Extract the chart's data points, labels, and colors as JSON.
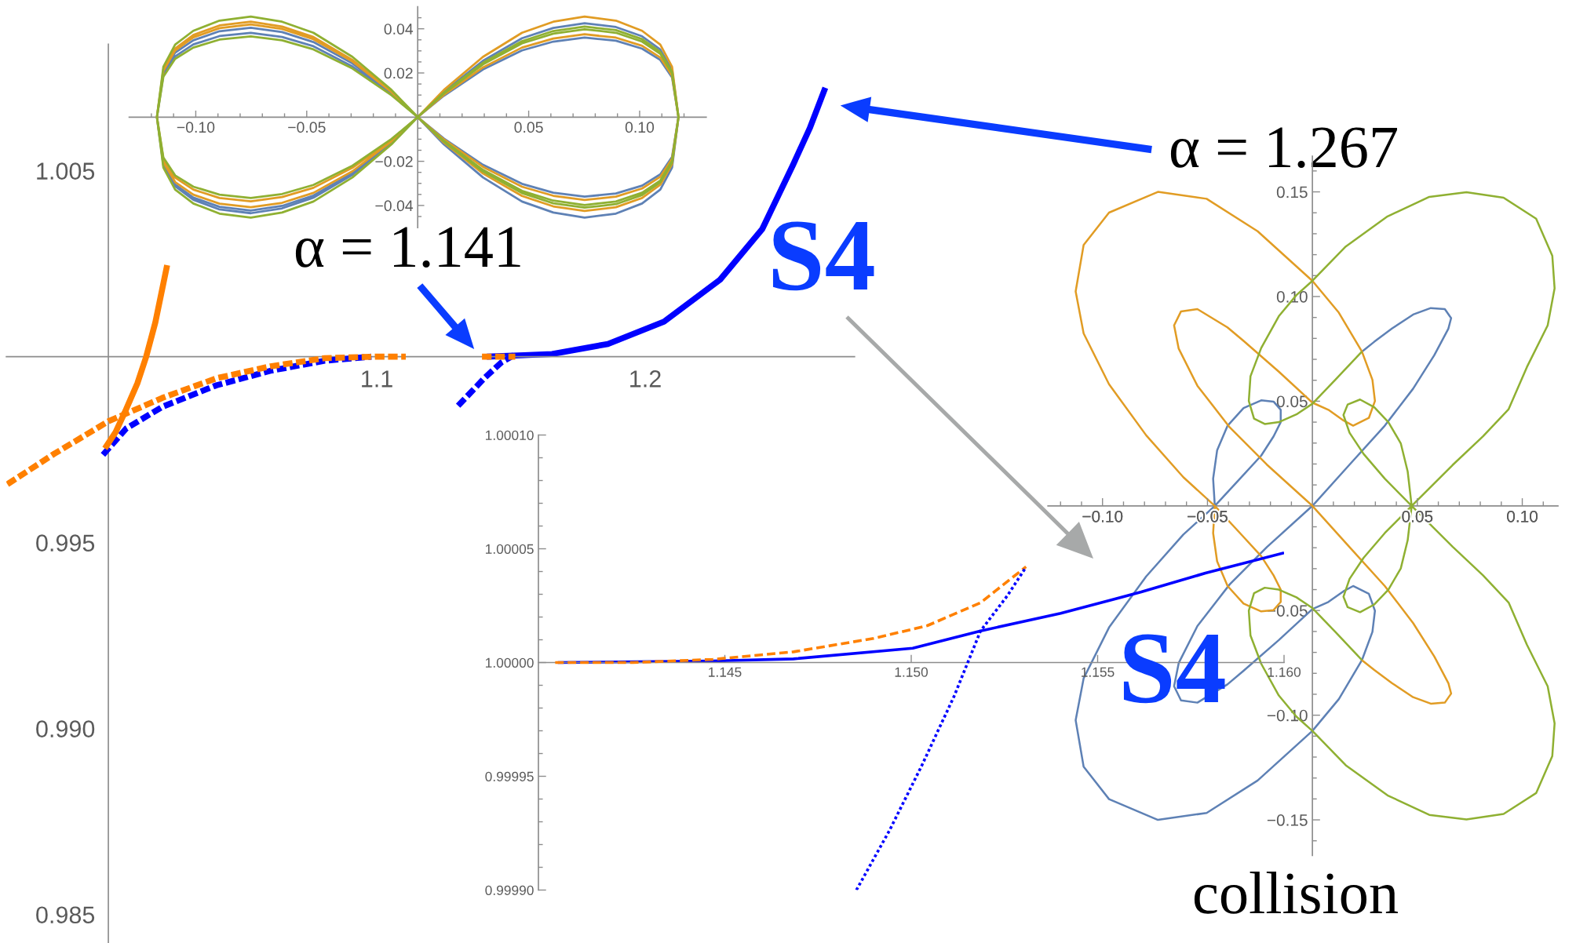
{
  "chart_data": [
    {
      "type": "line",
      "xlim": [
        0.962,
        1.278
      ],
      "ylim": [
        0.98425,
        1.0084
      ],
      "xticks": [
        {
          "value": 1.0,
          "label": null
        },
        1.1,
        1.2
      ],
      "yticks": [
        0.985,
        {
          "value": 0.99,
          "label": "0.990"
        },
        0.995,
        {
          "value": 1.0,
          "label": null
        },
        1.005
      ],
      "series": [
        {
          "color": "#0000ff",
          "line_style": "solid",
          "x": [
            1.141,
            1.1548,
            1.1653,
            1.1861,
            1.207,
            1.2279,
            1.2436,
            1.2551,
            1.2613,
            1.2671
          ],
          "values": [
            1.0,
            1.00004,
            1.00007,
            1.00034,
            1.00094,
            1.00207,
            1.00343,
            1.00516,
            1.00614,
            1.00723
          ]
        },
        {
          "color": "#0000ff",
          "line_style": "dashed",
          "x": [
            0.998,
            1.0067,
            1.0201,
            1.0403,
            1.0604,
            1.0806,
            1.098
          ],
          "values": [
            0.99736,
            0.99807,
            0.99865,
            0.99923,
            0.99962,
            0.99989,
            1.0
          ]
        },
        {
          "color": "#0000ff",
          "line_style": "dashed",
          "x": [
            1.1303,
            1.1402,
            1.1465,
            1.1511
          ],
          "values": [
            0.99868,
            0.99943,
            0.99985,
            1.00004
          ]
        },
        {
          "color": "#ff8000",
          "line_style": "dashed",
          "x": [
            1.1392,
            1.1453,
            1.1516
          ],
          "values": [
            1.0,
            1.0,
            1.0
          ]
        },
        {
          "color": "#ff8000",
          "line_style": "solid",
          "x": [
            0.9987,
            1.0027,
            1.0061,
            1.0108,
            1.0141,
            1.0175,
            1.0219
          ],
          "values": [
            0.99753,
            0.99797,
            0.9985,
            0.99928,
            1.0,
            1.00092,
            1.00246
          ]
        },
        {
          "color": "#ff8000",
          "line_style": "dashed",
          "x": [
            0.9624,
            0.9799,
            1.0,
            1.0201,
            1.0403,
            1.0604,
            1.0806,
            1.0994,
            1.1108
          ],
          "values": [
            0.99657,
            0.99739,
            0.99826,
            0.99889,
            0.99942,
            0.99974,
            0.99996,
            1.0,
            1.0
          ]
        }
      ],
      "annotations": [
        "α = 1.141",
        "α = 1.267",
        "S4"
      ]
    },
    {
      "type": "line",
      "xlim": [
        -0.13,
        0.13
      ],
      "ylim": [
        -0.05,
        0.05
      ],
      "xticks": [
        {
          "value": -0.12,
          "label": null
        },
        {
          "value": -0.11,
          "label": null
        },
        {
          "value": -0.1,
          "label": "−0.10"
        },
        {
          "value": -0.09,
          "label": null
        },
        {
          "value": -0.08,
          "label": null
        },
        {
          "value": -0.07,
          "label": null
        },
        {
          "value": -0.06,
          "label": null
        },
        {
          "value": -0.05,
          "label": "−0.05"
        },
        {
          "value": -0.04,
          "label": null
        },
        {
          "value": -0.03,
          "label": null
        },
        {
          "value": -0.02,
          "label": null
        },
        {
          "value": -0.01,
          "label": null
        },
        {
          "value": 0.01,
          "label": null
        },
        {
          "value": 0.02,
          "label": null
        },
        {
          "value": 0.03,
          "label": null
        },
        {
          "value": 0.04,
          "label": null
        },
        0.05,
        {
          "value": 0.06,
          "label": null
        },
        {
          "value": 0.07,
          "label": null
        },
        {
          "value": 0.08,
          "label": null
        },
        {
          "value": 0.09,
          "label": null
        },
        {
          "value": 0.1,
          "label": "0.10"
        },
        {
          "value": 0.11,
          "label": null
        },
        {
          "value": 0.12,
          "label": null
        }
      ],
      "yticks": [
        {
          "value": -0.045,
          "label": null
        },
        {
          "value": -0.04,
          "label": "−0.04"
        },
        {
          "value": -0.035,
          "label": null
        },
        {
          "value": -0.03,
          "label": null
        },
        {
          "value": -0.025,
          "label": null
        },
        {
          "value": -0.02,
          "label": "−0.02"
        },
        {
          "value": -0.015,
          "label": null
        },
        {
          "value": -0.01,
          "label": null
        },
        {
          "value": -0.005,
          "label": null
        },
        {
          "value": 0.005,
          "label": null
        },
        {
          "value": 0.01,
          "label": null
        },
        {
          "value": 0.015,
          "label": null
        },
        0.02,
        {
          "value": 0.025,
          "label": null
        },
        {
          "value": 0.03,
          "label": null
        },
        {
          "value": 0.035,
          "label": null
        },
        0.04,
        {
          "value": 0.045,
          "label": null
        }
      ],
      "x": [
        0,
        0.0118,
        0.0294,
        0.047,
        0.0611,
        0.0752,
        0.0893,
        0.1011,
        0.1093,
        0.1146,
        0.1175,
        0.1146,
        0.1093,
        0.1011,
        0.0893,
        0.0752,
        0.0611,
        0.047,
        0.0294,
        0.0118,
        0,
        -0.0118,
        -0.0294,
        -0.047,
        -0.0611,
        -0.0752,
        -0.0893,
        -0.1011,
        -0.1093,
        -0.1146,
        -0.1175,
        -0.1146,
        -0.1093,
        -0.1011,
        -0.0893,
        -0.0752,
        -0.0611,
        -0.047,
        -0.0294,
        -0.0118,
        0,
        0.0118,
        0.0294,
        0.047,
        0.0611,
        0.0752,
        0.0893,
        0.1011,
        0.1093,
        0.1146,
        0.1175,
        0.1146,
        0.1093,
        0.1011,
        0.0893,
        0.0752,
        0.0611,
        0.047,
        0.0294,
        0.0118,
        0,
        -0.0118,
        -0.0294,
        -0.047,
        -0.0611,
        -0.0752,
        -0.0893,
        -0.1011,
        -0.1093,
        -0.1146,
        -0.1175,
        -0.1146,
        -0.1093,
        -0.1011,
        -0.0893,
        -0.0752,
        -0.0611,
        -0.047,
        -0.0294,
        -0.0118,
        0,
        0.0118
      ],
      "series": [
        {
          "color": "#5e81b5",
          "line_style": "solid",
          "values": [
            0,
            0.0115,
            0.0255,
            0.0357,
            0.0404,
            0.0425,
            0.0408,
            0.0366,
            0.0306,
            0.0213,
            0,
            -0.0228,
            -0.0328,
            -0.0391,
            -0.0437,
            -0.0455,
            -0.0432,
            -0.0382,
            -0.0273,
            -0.0123,
            0,
            0.0109,
            0.0243,
            0.034,
            0.0385,
            0.0405,
            0.0389,
            0.0348,
            0.0292,
            0.0203,
            0,
            -0.0218,
            -0.0313,
            -0.0374,
            -0.0418,
            -0.0435,
            -0.0413,
            -0.0365,
            -0.0261,
            -0.0117,
            0,
            0.0097,
            0.0216,
            0.0302,
            0.0342,
            0.036,
            0.0346,
            0.031,
            0.0259,
            0.018,
            0,
            -0.018,
            -0.0259,
            -0.031,
            -0.0346,
            -0.036,
            -0.0342,
            -0.0302,
            -0.0216,
            -0.0097,
            0,
            0.0103,
            0.0229,
            0.0321,
            0.0363,
            0.0382,
            0.0367,
            0.0329,
            0.0275,
            0.0191,
            0,
            -0.0212,
            -0.0305,
            -0.0364,
            -0.0406,
            -0.0423,
            -0.0402,
            -0.0355,
            -0.0254,
            -0.0114,
            0,
            0.0115
          ]
        },
        {
          "color": "#e19c24",
          "line_style": "solid",
          "values": [
            0,
            0.0123,
            0.0273,
            0.0382,
            0.0432,
            0.0455,
            0.0437,
            0.0391,
            0.0328,
            0.0228,
            0,
            -0.0213,
            -0.0306,
            -0.0366,
            -0.0408,
            -0.0425,
            -0.0404,
            -0.0357,
            -0.0255,
            -0.0115,
            0,
            0.0117,
            0.0259,
            0.0363,
            0.041,
            0.0432,
            0.0415,
            0.0372,
            0.0311,
            0.0216,
            0,
            -0.0204,
            -0.0294,
            -0.0351,
            -0.0392,
            -0.0408,
            -0.0388,
            -0.0343,
            -0.0245,
            -0.011,
            0,
            0.0101,
            0.0225,
            0.0315,
            0.0356,
            0.0375,
            0.036,
            0.0323,
            0.027,
            0.0188,
            0,
            -0.0188,
            -0.027,
            -0.0323,
            -0.036,
            -0.0375,
            -0.0356,
            -0.0315,
            -0.0225,
            -0.0101,
            0,
            0.0113,
            0.0252,
            0.0353,
            0.0399,
            0.042,
            0.0403,
            0.0361,
            0.0302,
            0.021,
            0,
            -0.0191,
            -0.0274,
            -0.0328,
            -0.0366,
            -0.0381,
            -0.0362,
            -0.032,
            -0.0229,
            -0.0103,
            0,
            0.0123
          ]
        },
        {
          "color": "#8fb032",
          "line_style": "solid",
          "values": [
            0,
            0.0111,
            0.0246,
            0.0344,
            0.039,
            0.041,
            0.0394,
            0.0353,
            0.0295,
            0.0205,
            0,
            -0.0205,
            -0.0295,
            -0.0353,
            -0.0394,
            -0.041,
            -0.039,
            -0.0344,
            -0.0246,
            -0.0111,
            0,
            0.0123,
            0.0273,
            0.0382,
            0.0432,
            0.0455,
            0.0437,
            0.0391,
            0.0328,
            0.0228,
            0,
            -0.0228,
            -0.0328,
            -0.0391,
            -0.0437,
            -0.0455,
            -0.0432,
            -0.0382,
            -0.0273,
            -0.0123,
            0,
            0.0107,
            0.0239,
            0.0334,
            0.0378,
            0.0398,
            0.0382,
            0.0342,
            0.0287,
            0.0199,
            0,
            -0.0199,
            -0.0287,
            -0.0342,
            -0.0382,
            -0.0398,
            -0.0378,
            -0.0334,
            -0.0239,
            -0.0107,
            0,
            0.0099,
            0.022,
            0.0307,
            0.0348,
            0.0366,
            0.0351,
            0.0315,
            0.0264,
            0.0183,
            0,
            -0.0183,
            -0.0264,
            -0.0315,
            -0.0351,
            -0.0366,
            -0.0348,
            -0.0307,
            -0.022,
            -0.0099,
            0,
            0.0111
          ]
        }
      ]
    },
    {
      "type": "line",
      "xlim": [
        1.14,
        1.16
      ],
      "ylim": [
        0.9999,
        1.0001
      ],
      "xticks": [
        1.145,
        {
          "value": 1.15,
          "label": "1.150"
        },
        1.155,
        {
          "value": 1.16,
          "label": "1.160"
        }
      ],
      "yticks": [
        {
          "value": 0.9999,
          "label": "0.99990"
        },
        {
          "value": 0.99991,
          "label": null
        },
        {
          "value": 0.99992,
          "label": null
        },
        {
          "value": 0.99993,
          "label": null
        },
        {
          "value": 0.99994,
          "label": null
        },
        0.99995,
        {
          "value": 0.99996,
          "label": null
        },
        {
          "value": 0.99997,
          "label": null
        },
        {
          "value": 0.99998,
          "label": null
        },
        {
          "value": 0.99999,
          "label": null
        },
        {
          "value": 1.0,
          "label": "1.00000"
        },
        {
          "value": 1.00001,
          "label": null
        },
        {
          "value": 1.00002,
          "label": null
        },
        {
          "value": 1.00003,
          "label": null
        },
        {
          "value": 1.00004,
          "label": null
        },
        1.00005,
        {
          "value": 1.00006,
          "label": null
        },
        {
          "value": 1.00007,
          "label": null
        },
        {
          "value": 1.00008,
          "label": null
        },
        {
          "value": 1.00009,
          "label": null
        },
        {
          "value": 1.0001,
          "label": "1.00010"
        }
      ],
      "series": [
        {
          "color": "#0000ff",
          "line_style": "solid",
          "x": [
            1.14052,
            1.14468,
            1.14684,
            1.15004,
            1.15186,
            1.15401,
            1.15617,
            1.15789,
            1.16
          ],
          "values": [
            1.0,
            1.0000007,
            1.0000016,
            1.0000063,
            1.0000139,
            1.0000216,
            1.000031,
            1.0000393,
            1.0000482
          ]
        },
        {
          "color": "#ff8000",
          "line_style": "dashed",
          "x": [
            1.14045,
            1.14253,
            1.14468,
            1.14684,
            1.14899,
            1.15043,
            1.15186,
            1.15308
          ],
          "values": [
            1.0,
            1.0,
            1.0000014,
            1.0000047,
            1.0000106,
            1.0000162,
            1.0000263,
            1.0000421
          ]
        },
        {
          "color": "#0000ff",
          "line_style": "dotted",
          "x": [
            1.14853,
            1.14942,
            1.15028,
            1.15115,
            1.15186,
            1.15258,
            1.15308
          ],
          "values": [
            0.9999,
            0.9999263,
            0.9999546,
            0.9999852,
            1.0000139,
            1.0000294,
            1.000042
          ]
        }
      ],
      "annotations": [
        "S4"
      ]
    },
    {
      "type": "line",
      "xlim": [
        -0.126,
        0.117
      ],
      "ylim": [
        -0.167,
        0.167
      ],
      "xticks": [
        {
          "value": -0.12,
          "label": null
        },
        {
          "value": -0.11,
          "label": null
        },
        {
          "value": -0.1,
          "label": "−0.10"
        },
        {
          "value": -0.09,
          "label": null
        },
        {
          "value": -0.08,
          "label": null
        },
        {
          "value": -0.07,
          "label": null
        },
        {
          "value": -0.06,
          "label": null
        },
        {
          "value": -0.05,
          "label": "−0.05"
        },
        {
          "value": -0.04,
          "label": null
        },
        {
          "value": -0.03,
          "label": null
        },
        {
          "value": -0.02,
          "label": null
        },
        {
          "value": -0.01,
          "label": null
        },
        {
          "value": 0.01,
          "label": null
        },
        {
          "value": 0.02,
          "label": null
        },
        {
          "value": 0.03,
          "label": null
        },
        {
          "value": 0.04,
          "label": null
        },
        0.05,
        {
          "value": 0.06,
          "label": null
        },
        {
          "value": 0.07,
          "label": null
        },
        {
          "value": 0.08,
          "label": null
        },
        {
          "value": 0.09,
          "label": null
        },
        {
          "value": 0.1,
          "label": "0.10"
        },
        {
          "value": 0.11,
          "label": null
        }
      ],
      "yticks": [
        {
          "value": -0.16,
          "label": null
        },
        {
          "value": -0.15,
          "label": "−0.15"
        },
        {
          "value": -0.14,
          "label": null
        },
        {
          "value": -0.13,
          "label": null
        },
        {
          "value": -0.12,
          "label": null
        },
        {
          "value": -0.11,
          "label": null
        },
        {
          "value": -0.1,
          "label": "−0.10"
        },
        {
          "value": -0.09,
          "label": null
        },
        {
          "value": -0.08,
          "label": null
        },
        {
          "value": -0.07,
          "label": null
        },
        {
          "value": -0.06,
          "label": null
        },
        {
          "value": -0.05,
          "label": "−0.05"
        },
        {
          "value": -0.04,
          "label": null
        },
        {
          "value": -0.03,
          "label": null
        },
        {
          "value": -0.02,
          "label": null
        },
        {
          "value": -0.01,
          "label": null
        },
        {
          "value": 0.01,
          "label": null
        },
        {
          "value": 0.02,
          "label": null
        },
        {
          "value": 0.03,
          "label": null
        },
        {
          "value": 0.04,
          "label": null
        },
        0.05,
        {
          "value": 0.06,
          "label": null
        },
        {
          "value": 0.07,
          "label": null
        },
        {
          "value": 0.08,
          "label": null
        },
        {
          "value": 0.09,
          "label": null
        },
        {
          "value": 0.1,
          "label": "0.10"
        },
        {
          "value": 0.11,
          "label": null
        },
        {
          "value": 0.12,
          "label": null
        },
        {
          "value": 0.13,
          "label": null
        },
        {
          "value": 0.14,
          "label": null
        },
        0.15,
        {
          "value": 0.16,
          "label": null
        }
      ],
      "series": [
        {
          "color": "#5e81b5",
          "line_style": "solid",
          "x": [
            -0.0465,
            -0.0473,
            -0.0454,
            -0.0404,
            -0.0328,
            -0.0244,
            -0.0185,
            -0.0151,
            -0.0151,
            -0.0185,
            -0.0244,
            -0.0345,
            -0.0465,
            -0.0615,
            -0.0792,
            -0.0969,
            -0.109,
            -0.1128,
            -0.109,
            -0.0969,
            -0.0736,
            -0.0504,
            -0.0261,
            0,
            0.0126,
            0.0236,
            0.0286,
            0.0298,
            0.0269,
            0.0194,
            0.0148,
            0.0076,
            0,
            -0.016,
            -0.0328,
            -0.0405,
            -0.0548,
            -0.0626,
            -0.0659,
            -0.0637,
            -0.0548,
            -0.0394,
            -0.0217,
            0,
            0.0177,
            0.0345,
            0.048,
            0.0581,
            0.0648,
            0.0661,
            0.0631,
            0.0564,
            0.048,
            0.0379,
            0.0295,
            0.0236
          ],
          "values": [
            0,
            0.013,
            0.0265,
            0.0383,
            0.0467,
            0.0504,
            0.0498,
            0.0459,
            0.04,
            0.0332,
            0.024,
            0.013,
            0,
            -0.0137,
            -0.0337,
            -0.0581,
            -0.0824,
            -0.1024,
            -0.1246,
            -0.1401,
            -0.15,
            -0.1467,
            -0.1312,
            -0.1075,
            -0.0923,
            -0.0737,
            -0.0602,
            -0.0501,
            -0.042,
            -0.0383,
            -0.0408,
            -0.0459,
            -0.0493,
            -0.0641,
            -0.0788,
            -0.0853,
            -0.094,
            -0.0929,
            -0.0862,
            -0.0751,
            -0.0574,
            -0.0375,
            -0.0197,
            0,
            0.0197,
            0.0383,
            0.056,
            0.072,
            0.0847,
            0.0897,
            0.094,
            0.0945,
            0.0914,
            0.0847,
            0.0784,
            0.0737
          ]
        },
        {
          "color": "#e19c24",
          "line_style": "solid",
          "x": [
            -0.0465,
            -0.0473,
            -0.0454,
            -0.0404,
            -0.0328,
            -0.0244,
            -0.0185,
            -0.0151,
            -0.0151,
            -0.0185,
            -0.0244,
            -0.0345,
            -0.0465,
            -0.0615,
            -0.0792,
            -0.0969,
            -0.109,
            -0.1128,
            -0.109,
            -0.0969,
            -0.0736,
            -0.0504,
            -0.0261,
            0,
            0.0126,
            0.0236,
            0.0286,
            0.0298,
            0.0269,
            0.0194,
            0.0148,
            0.0076,
            0,
            -0.016,
            -0.0328,
            -0.0405,
            -0.0548,
            -0.0626,
            -0.0659,
            -0.0637,
            -0.0548,
            -0.0394,
            -0.0217,
            0,
            0.0177,
            0.0345,
            0.048,
            0.0581,
            0.0648,
            0.0661,
            0.0631,
            0.0564,
            0.048,
            0.0379,
            0.0295,
            0.0236
          ],
          "values": [
            0,
            -0.013,
            -0.0265,
            -0.0383,
            -0.0467,
            -0.0504,
            -0.0498,
            -0.0459,
            -0.04,
            -0.0332,
            -0.024,
            -0.013,
            0,
            0.0137,
            0.0337,
            0.0581,
            0.0824,
            0.1024,
            0.1246,
            0.1401,
            0.15,
            0.1467,
            0.1312,
            0.1075,
            0.0923,
            0.0737,
            0.0602,
            0.0501,
            0.042,
            0.0383,
            0.0408,
            0.0459,
            0.0493,
            0.0641,
            0.0788,
            0.0853,
            0.094,
            0.0929,
            0.0862,
            0.0751,
            0.0574,
            0.0375,
            0.0197,
            0,
            -0.0197,
            -0.0383,
            -0.056,
            -0.072,
            -0.0847,
            -0.0897,
            -0.094,
            -0.0945,
            -0.0914,
            -0.0847,
            -0.0784,
            -0.0737
          ]
        },
        {
          "color": "#8fb032",
          "line_style": "solid",
          "x": [
            0.0236,
            0.0109,
            0,
            -0.0076,
            -0.016,
            -0.0227,
            -0.0278,
            -0.0303,
            -0.0295,
            -0.0244,
            -0.016,
            -0.0076,
            0,
            0.0159,
            0.0358,
            0.0557,
            0.0734,
            0.0911,
            0.1066,
            0.1143,
            0.1154,
            0.1121,
            0.1022,
            0.0935,
            0.0813,
            0.0668,
            0.0473,
            0.0345,
            0.0244,
            0.0177,
            0.0148,
            0.0168,
            0.0227,
            0.0295,
            0.0362,
            0.0421,
            0.0454,
            0.0473,
            0.0454,
            0.0421,
            0.0362,
            0.0295,
            0.0227,
            0.0168,
            0.0148,
            0.0177,
            0.0244,
            0.0345,
            0.0473,
            0.0668,
            0.0813,
            0.0935,
            0.1022,
            0.1121,
            0.1154,
            0.1143,
            0.1066,
            0.0911,
            0.0734,
            0.0557,
            0.0358,
            0.0159,
            0,
            -0.0076,
            -0.016,
            -0.0244,
            -0.0295,
            -0.0303,
            -0.0278,
            -0.0227,
            -0.016,
            -0.0076,
            0,
            0.0109,
            0.0236
          ],
          "values": [
            -0.0737,
            -0.0602,
            -0.0488,
            -0.0437,
            -0.04,
            -0.0391,
            -0.0417,
            -0.0501,
            -0.0619,
            -0.0754,
            -0.0906,
            -0.1007,
            -0.1075,
            -0.1239,
            -0.1383,
            -0.1476,
            -0.1498,
            -0.1472,
            -0.1372,
            -0.1195,
            -0.1039,
            -0.0862,
            -0.0663,
            -0.0462,
            -0.0332,
            -0.0195,
            0,
            0.013,
            0.0248,
            0.0349,
            0.0434,
            0.0484,
            0.0508,
            0.0471,
            0.04,
            0.0299,
            0.0164,
            0,
            -0.0164,
            -0.0299,
            -0.04,
            -0.0471,
            -0.0508,
            -0.0484,
            -0.0434,
            -0.0349,
            -0.0248,
            -0.013,
            0,
            0.0195,
            0.0332,
            0.0462,
            0.0663,
            0.0862,
            0.1039,
            0.1195,
            0.1372,
            0.1472,
            0.1498,
            0.1476,
            0.1383,
            0.1239,
            0.1075,
            0.1007,
            0.0906,
            0.0754,
            0.0619,
            0.0501,
            0.0417,
            0.0391,
            0.04,
            0.0437,
            0.0488,
            0.0602,
            0.0737
          ]
        }
      ],
      "annotations": [
        "collision"
      ]
    }
  ]
}
